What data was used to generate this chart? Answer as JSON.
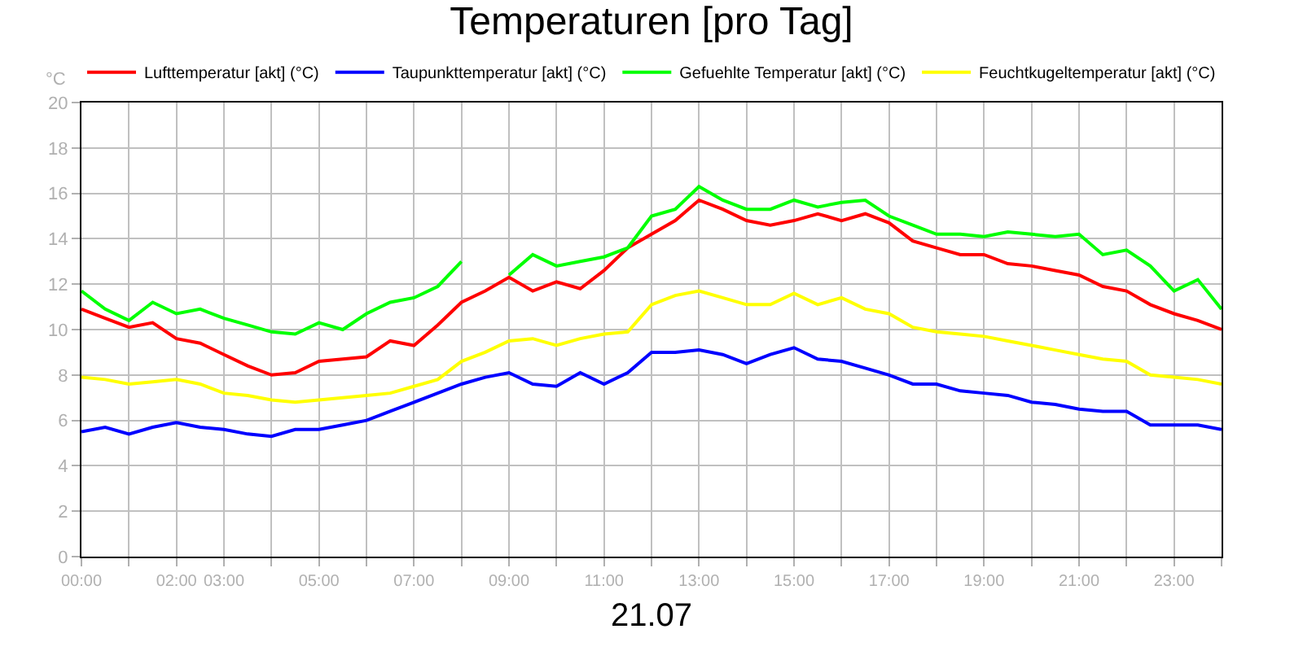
{
  "chart_data": {
    "type": "line",
    "title": "Temperaturen [pro Tag]",
    "xlabel": "21.07",
    "ylabel": "°C",
    "x": [
      0,
      0.5,
      1,
      1.5,
      2,
      2.5,
      3,
      3.5,
      4,
      4.5,
      5,
      5.5,
      6,
      6.5,
      7,
      7.5,
      8,
      8.5,
      9,
      9.5,
      10,
      10.5,
      11,
      11.5,
      12,
      12.5,
      13,
      13.5,
      14,
      14.5,
      15,
      15.5,
      16,
      16.5,
      17,
      17.5,
      18,
      18.5,
      19,
      19.5,
      20,
      20.5,
      21,
      21.5,
      22,
      22.5,
      23,
      23.5,
      24
    ],
    "series": [
      {
        "name": "Lufttemperatur [akt] (°C)",
        "color": "#ff0000",
        "values": [
          10.9,
          10.5,
          10.1,
          10.3,
          9.6,
          9.4,
          8.9,
          8.4,
          8.0,
          8.1,
          8.6,
          8.7,
          8.8,
          9.5,
          9.3,
          10.2,
          11.2,
          11.7,
          12.3,
          11.7,
          12.1,
          11.8,
          12.6,
          13.6,
          14.2,
          14.8,
          15.7,
          15.3,
          14.8,
          14.6,
          14.8,
          15.1,
          14.8,
          15.1,
          14.7,
          13.9,
          13.6,
          13.3,
          13.3,
          12.9,
          12.8,
          12.6,
          12.4,
          11.9,
          11.7,
          11.1,
          10.7,
          10.4,
          10.0
        ]
      },
      {
        "name": "Taupunkttemperatur [akt] (°C)",
        "color": "#0000ff",
        "values": [
          5.5,
          5.7,
          5.4,
          5.7,
          5.9,
          5.7,
          5.6,
          5.4,
          5.3,
          5.6,
          5.6,
          5.8,
          6.0,
          6.4,
          6.8,
          7.2,
          7.6,
          7.9,
          8.1,
          7.6,
          7.5,
          8.1,
          7.6,
          8.1,
          9.0,
          9.0,
          9.1,
          8.9,
          8.5,
          8.9,
          9.2,
          8.7,
          8.6,
          8.3,
          8.0,
          7.6,
          7.6,
          7.3,
          7.2,
          7.1,
          6.8,
          6.7,
          6.5,
          6.4,
          6.4,
          5.8,
          5.8,
          5.8,
          5.6
        ]
      },
      {
        "name": "Gefuehlte Temperatur [akt] (°C)",
        "color": "#00ff00",
        "values": [
          11.7,
          10.9,
          10.4,
          11.2,
          10.7,
          10.9,
          10.5,
          10.2,
          9.9,
          9.8,
          10.3,
          10.0,
          10.7,
          11.2,
          11.4,
          11.9,
          13.0,
          null,
          12.4,
          13.3,
          12.8,
          13.0,
          13.2,
          13.6,
          15.0,
          15.3,
          16.3,
          15.7,
          15.3,
          15.3,
          15.7,
          15.4,
          15.6,
          15.7,
          15.0,
          14.6,
          14.2,
          14.2,
          14.1,
          14.3,
          14.2,
          14.1,
          14.2,
          13.3,
          13.5,
          12.8,
          11.7,
          12.2,
          10.9
        ]
      },
      {
        "name": "Feuchtkugeltemperatur [akt] (°C)",
        "color": "#ffff00",
        "values": [
          7.9,
          7.8,
          7.6,
          7.7,
          7.8,
          7.6,
          7.2,
          7.1,
          6.9,
          6.8,
          6.9,
          7.0,
          7.1,
          7.2,
          7.5,
          7.8,
          8.6,
          9.0,
          9.5,
          9.6,
          9.3,
          9.6,
          9.8,
          9.9,
          11.1,
          11.5,
          11.7,
          11.4,
          11.1,
          11.1,
          11.6,
          11.1,
          11.4,
          10.9,
          10.7,
          10.1,
          9.9,
          9.8,
          9.7,
          9.5,
          9.3,
          9.1,
          8.9,
          8.7,
          8.6,
          8.0,
          7.9,
          7.8,
          7.6
        ]
      }
    ],
    "xlim": [
      0,
      24
    ],
    "xticks": [
      {
        "value": 0,
        "label": "00:00"
      },
      {
        "value": 1,
        "label": null
      },
      {
        "value": 2,
        "label": "02:00"
      },
      {
        "value": 3,
        "label": "03:00"
      },
      {
        "value": 4,
        "label": null
      },
      {
        "value": 5,
        "label": "05:00"
      },
      {
        "value": 6,
        "label": null
      },
      {
        "value": 7,
        "label": "07:00"
      },
      {
        "value": 8,
        "label": null
      },
      {
        "value": 9,
        "label": "09:00"
      },
      {
        "value": 10,
        "label": null
      },
      {
        "value": 11,
        "label": "11:00"
      },
      {
        "value": 12,
        "label": null
      },
      {
        "value": 13,
        "label": "13:00"
      },
      {
        "value": 14,
        "label": null
      },
      {
        "value": 15,
        "label": "15:00"
      },
      {
        "value": 16,
        "label": null
      },
      {
        "value": 17,
        "label": "17:00"
      },
      {
        "value": 18,
        "label": null
      },
      {
        "value": 19,
        "label": "19:00"
      },
      {
        "value": 20,
        "label": null
      },
      {
        "value": 21,
        "label": "21:00"
      },
      {
        "value": 22,
        "label": null
      },
      {
        "value": 23,
        "label": "23:00"
      },
      {
        "value": 24,
        "label": null
      }
    ],
    "ylim": [
      0,
      20
    ],
    "yticks": [
      0,
      2,
      4,
      6,
      8,
      10,
      12,
      14,
      16,
      18,
      20
    ],
    "grid": true,
    "legend": "top",
    "marker": "none",
    "line_style": "solid"
  }
}
